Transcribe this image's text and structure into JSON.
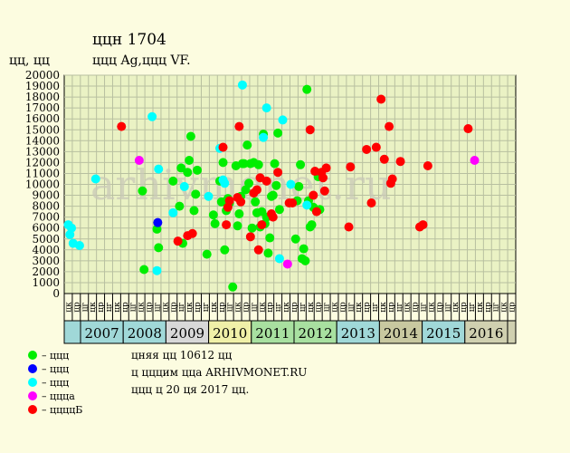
{
  "header": {
    "title": "ццн 1704",
    "subtitle": "ццц Ag,ццц VF.",
    "yaxis_label": "цц, цц"
  },
  "watermark": "arhivmonet.ru",
  "info": {
    "line1": "цняя цц 10612 цц",
    "line2": "ц цццим цца ARHIVMONET.RU",
    "line3": "ццц ц 20 ця 2017 цц."
  },
  "legend": [
    {
      "label": "– ццц",
      "color": "#00ee00"
    },
    {
      "label": "– ццц",
      "color": "#0000ff"
    },
    {
      "label": "– ццц",
      "color": "#00ffff"
    },
    {
      "label": "– ццца",
      "color": "#ff00ff"
    },
    {
      "label": "– ццццБ",
      "color": "#ff0000"
    }
  ],
  "chart_data": {
    "type": "scatter",
    "ylim": [
      0,
      20000
    ],
    "yticks": [
      0,
      1000,
      2000,
      3000,
      4000,
      5000,
      6000,
      7000,
      8000,
      9000,
      10000,
      11000,
      12000,
      13000,
      14000,
      15000,
      16000,
      17000,
      18000,
      19000,
      20000
    ],
    "quarter_labels": [
      "цк",
      "цр",
      "цг",
      "цк",
      "цр",
      "цг",
      "цк",
      "цр",
      "цг",
      "цк",
      "цр",
      "цг",
      "цк",
      "цр",
      "цг",
      "цк",
      "цр",
      "цг",
      "цк",
      "цр",
      "цг",
      "цк",
      "цр",
      "цг",
      "цк",
      "цр",
      "цг",
      "цк",
      "цр",
      "цг",
      "цк",
      "цр",
      "цг",
      "цк",
      "цр",
      "цг",
      "цк",
      "цр",
      "цг",
      "цк",
      "цр",
      "цг",
      "цк",
      "цр",
      "цг",
      "цк",
      "цр",
      "цг",
      "цк",
      "цр",
      "цг",
      "цк",
      "цр",
      "цг",
      "цк",
      "цр"
    ],
    "years": [
      {
        "label": "2007",
        "color": "#a0d8d8"
      },
      {
        "label": "2008",
        "color": "#a0d8d8"
      },
      {
        "label": "2009",
        "color": "#d8d8d8"
      },
      {
        "label": "2010",
        "color": "#f0f0a8"
      },
      {
        "label": "2011",
        "color": "#a8e0a0"
      },
      {
        "label": "2012",
        "color": "#a8e0a0"
      },
      {
        "label": "2013",
        "color": "#a0d8d8"
      },
      {
        "label": "2014",
        "color": "#c8c8a0"
      },
      {
        "label": "2015",
        "color": "#a0d8d8"
      },
      {
        "label": "2016",
        "color": "#d0d0b0"
      }
    ],
    "grid": true,
    "series": [
      {
        "color": "#00ee00",
        "points": [
          [
            9.7,
            9400
          ],
          [
            9.9,
            2200
          ],
          [
            11.5,
            5900
          ],
          [
            11.7,
            4200
          ],
          [
            13.5,
            10300
          ],
          [
            14.3,
            8000
          ],
          [
            14.5,
            11500
          ],
          [
            14.7,
            4600
          ],
          [
            15.3,
            11100
          ],
          [
            15.5,
            12200
          ],
          [
            15.7,
            14400
          ],
          [
            16.1,
            7600
          ],
          [
            16.3,
            9100
          ],
          [
            16.5,
            11300
          ],
          [
            17.7,
            3600
          ],
          [
            18.5,
            7200
          ],
          [
            18.7,
            6400
          ],
          [
            19.3,
            10300
          ],
          [
            19.5,
            8400
          ],
          [
            19.7,
            12000
          ],
          [
            19.9,
            4000
          ],
          [
            20.1,
            7600
          ],
          [
            20.3,
            8700
          ],
          [
            20.5,
            8300
          ],
          [
            20.9,
            600
          ],
          [
            21.3,
            11700
          ],
          [
            21.5,
            6200
          ],
          [
            21.7,
            7300
          ],
          [
            21.9,
            8900
          ],
          [
            22.1,
            11900
          ],
          [
            22.3,
            11900
          ],
          [
            22.5,
            9500
          ],
          [
            22.7,
            13600
          ],
          [
            22.9,
            10100
          ],
          [
            23.1,
            11900
          ],
          [
            23.3,
            6000
          ],
          [
            23.5,
            12000
          ],
          [
            23.7,
            8400
          ],
          [
            23.9,
            7400
          ],
          [
            24.1,
            11800
          ],
          [
            24.3,
            6100
          ],
          [
            24.5,
            7500
          ],
          [
            24.7,
            14600
          ],
          [
            24.9,
            6400
          ],
          [
            25.1,
            7000
          ],
          [
            25.3,
            3700
          ],
          [
            25.5,
            5100
          ],
          [
            25.7,
            8900
          ],
          [
            25.9,
            9000
          ],
          [
            26.1,
            11900
          ],
          [
            26.3,
            9900
          ],
          [
            26.5,
            14700
          ],
          [
            26.7,
            7700
          ],
          [
            28.7,
            5000
          ],
          [
            28.9,
            8500
          ],
          [
            29.1,
            9800
          ],
          [
            29.3,
            11800
          ],
          [
            29.5,
            3200
          ],
          [
            29.7,
            4100
          ],
          [
            29.9,
            3000
          ],
          [
            30.1,
            18700
          ],
          [
            30.3,
            8500
          ],
          [
            30.5,
            6100
          ],
          [
            30.7,
            6300
          ],
          [
            30.9,
            7900
          ],
          [
            31.5,
            10700
          ],
          [
            31.7,
            7700
          ]
        ]
      },
      {
        "color": "#0000ff",
        "points": [
          [
            11.6,
            6500
          ]
        ]
      },
      {
        "color": "#00ffff",
        "points": [
          [
            0.5,
            6300
          ],
          [
            0.7,
            5400
          ],
          [
            0.9,
            6000
          ],
          [
            1.1,
            4600
          ],
          [
            1.9,
            4400
          ],
          [
            3.9,
            10500
          ],
          [
            10.9,
            16200
          ],
          [
            11.5,
            2100
          ],
          [
            11.7,
            11400
          ],
          [
            13.5,
            7400
          ],
          [
            14.9,
            9800
          ],
          [
            17.9,
            8900
          ],
          [
            19.3,
            13300
          ],
          [
            19.7,
            10400
          ],
          [
            19.9,
            10100
          ],
          [
            22.1,
            19100
          ],
          [
            24.7,
            14300
          ],
          [
            25.1,
            17000
          ],
          [
            26.7,
            3200
          ],
          [
            27.1,
            15900
          ],
          [
            28.1,
            10000
          ],
          [
            30.1,
            8100
          ]
        ]
      },
      {
        "color": "#ff00ff",
        "points": [
          [
            9.3,
            12200
          ],
          [
            27.7,
            2700
          ],
          [
            50.9,
            12200
          ]
        ]
      },
      {
        "color": "#ff0000",
        "points": [
          [
            7.1,
            15300
          ],
          [
            14.1,
            4800
          ],
          [
            15.3,
            5300
          ],
          [
            15.9,
            5500
          ],
          [
            19.7,
            13400
          ],
          [
            20.1,
            6300
          ],
          [
            20.3,
            7900
          ],
          [
            20.5,
            8500
          ],
          [
            21.5,
            8800
          ],
          [
            21.7,
            15300
          ],
          [
            21.9,
            8400
          ],
          [
            23.1,
            5200
          ],
          [
            23.5,
            9200
          ],
          [
            23.9,
            9500
          ],
          [
            24.1,
            4000
          ],
          [
            24.3,
            10600
          ],
          [
            24.5,
            6300
          ],
          [
            25.1,
            10300
          ],
          [
            25.7,
            7300
          ],
          [
            25.9,
            7000
          ],
          [
            26.5,
            11100
          ],
          [
            27.9,
            8300
          ],
          [
            28.3,
            8300
          ],
          [
            30.5,
            15000
          ],
          [
            30.9,
            9000
          ],
          [
            31.1,
            11200
          ],
          [
            31.3,
            7500
          ],
          [
            31.9,
            11100
          ],
          [
            32.1,
            10600
          ],
          [
            32.3,
            9400
          ],
          [
            32.5,
            11500
          ],
          [
            35.3,
            6100
          ],
          [
            35.5,
            11600
          ],
          [
            37.5,
            13200
          ],
          [
            38.1,
            8300
          ],
          [
            38.7,
            13400
          ],
          [
            39.3,
            17800
          ],
          [
            39.7,
            12300
          ],
          [
            40.3,
            15300
          ],
          [
            40.5,
            10100
          ],
          [
            40.7,
            10500
          ],
          [
            41.7,
            12100
          ],
          [
            44.1,
            6100
          ],
          [
            44.5,
            6300
          ],
          [
            45.1,
            11700
          ],
          [
            50.1,
            15100
          ]
        ]
      }
    ]
  }
}
